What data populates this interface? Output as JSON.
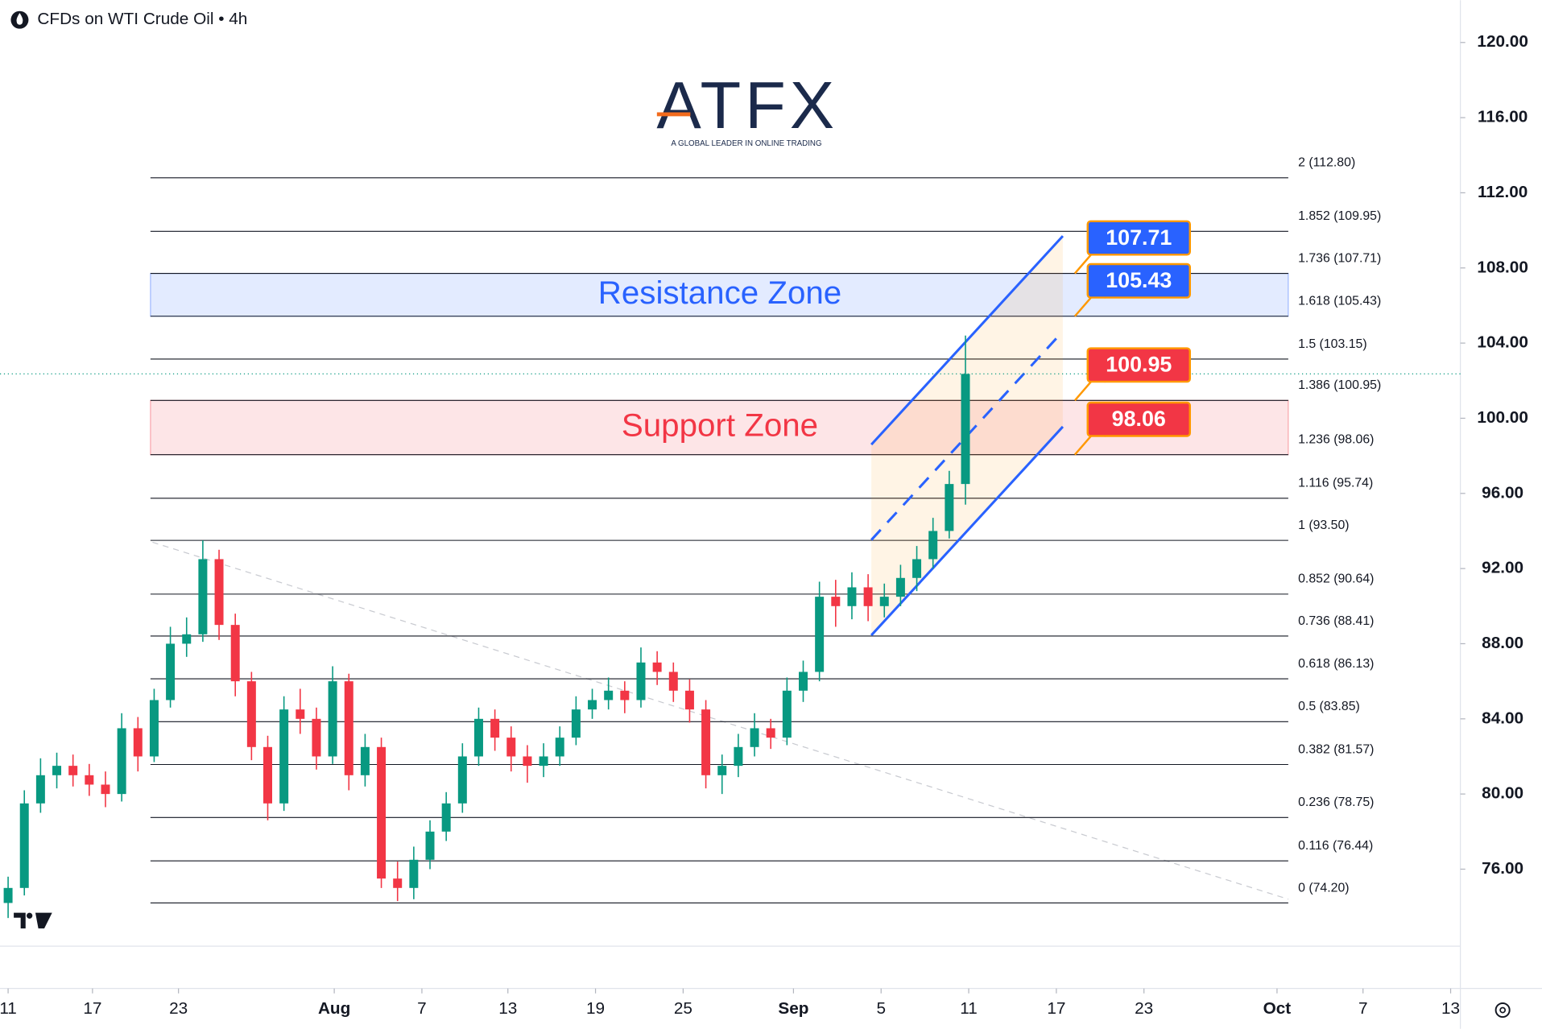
{
  "chart_data": {
    "type": "candlestick",
    "title": "CFDs on WTI Crude Oil • 4h",
    "logo": {
      "name": "ATFX",
      "tagline": "A GLOBAL LEADER IN ONLINE TRADING"
    },
    "up_color": "#089981",
    "down_color": "#f23645",
    "grid": false,
    "open": [
      74.2,
      75,
      79.5,
      81,
      81.5,
      81,
      80.5,
      80,
      83.5,
      82,
      85,
      88,
      88.5,
      92.5,
      89,
      86,
      82.5,
      79.5,
      84.5,
      84,
      82,
      86,
      81,
      82.5,
      75.5,
      75,
      76.5,
      78,
      79.5,
      82,
      84,
      83,
      82,
      81.5,
      82,
      83,
      84.5,
      85,
      85.5,
      85,
      87,
      86.5,
      85.5,
      84.5,
      81,
      81.5,
      82.5,
      83.5,
      83,
      85.5,
      86.5,
      90.5,
      90,
      91,
      90,
      90.5,
      91.5,
      92.5,
      94,
      96.5
    ],
    "high": [
      75.6,
      80.2,
      81.9,
      82.2,
      82.1,
      81.6,
      81.2,
      84.3,
      84.1,
      85.6,
      88.9,
      89.4,
      93.5,
      93,
      89.6,
      86.5,
      83.1,
      85.2,
      85.6,
      84.6,
      86.8,
      86.4,
      83.2,
      83,
      76.4,
      77.2,
      78.6,
      80.1,
      82.7,
      84.6,
      84.5,
      83.6,
      82.6,
      82.7,
      83.6,
      85.2,
      85.6,
      86.2,
      86,
      87.8,
      87.6,
      87,
      86.1,
      85,
      82.1,
      83.2,
      84.3,
      84,
      86.2,
      87.1,
      91.3,
      91.4,
      91.8,
      91.7,
      91.2,
      92.2,
      93.2,
      94.7,
      97.2,
      104.4
    ],
    "low": [
      73.4,
      74.6,
      79,
      80.3,
      80.4,
      79.9,
      79.3,
      79.6,
      81.2,
      81.7,
      84.6,
      87.3,
      88.1,
      88.2,
      85.2,
      81.8,
      78.6,
      79.1,
      83.2,
      81.3,
      81.6,
      80.2,
      80.4,
      75,
      74.3,
      74.4,
      76,
      77.5,
      79,
      81.5,
      82.3,
      81.2,
      80.6,
      80.9,
      81.5,
      82.6,
      84,
      84.5,
      84.3,
      84.6,
      85.8,
      84.9,
      83.8,
      80.3,
      80,
      80.9,
      82,
      82.4,
      82.6,
      84.9,
      86,
      88.9,
      89.3,
      89.2,
      89.4,
      90,
      90.8,
      92,
      93.6,
      95.4
    ],
    "close": [
      75,
      79.5,
      81,
      81.5,
      81,
      80.5,
      80,
      83.5,
      82,
      85,
      88,
      88.5,
      92.5,
      89,
      86,
      82.5,
      79.5,
      84.5,
      84,
      82,
      86,
      81,
      82.5,
      75.5,
      75,
      76.5,
      78,
      79.5,
      82,
      84,
      83,
      82,
      81.5,
      82,
      83,
      84.5,
      85,
      85.5,
      85,
      87,
      86.5,
      85.5,
      84.5,
      81,
      81.5,
      82.5,
      83.5,
      83,
      85.5,
      86.5,
      90.5,
      90,
      91,
      90,
      90.5,
      91.5,
      92.5,
      94,
      96.5,
      102.36
    ],
    "xlim": [
      -0.5,
      89.5
    ],
    "xticks": [
      {
        "value": 0,
        "label": "11"
      },
      {
        "value": 5.2,
        "label": "17"
      },
      {
        "value": 10.5,
        "label": "23"
      },
      {
        "value": 20.1,
        "label": "Aug"
      },
      {
        "value": 25.5,
        "label": "7"
      },
      {
        "value": 30.8,
        "label": "13"
      },
      {
        "value": 36.2,
        "label": "19"
      },
      {
        "value": 41.6,
        "label": "25"
      },
      {
        "value": 48.4,
        "label": "Sep"
      },
      {
        "value": 53.8,
        "label": "5"
      },
      {
        "value": 59.2,
        "label": "11"
      },
      {
        "value": 64.6,
        "label": "17"
      },
      {
        "value": 70,
        "label": "23"
      },
      {
        "value": 78.2,
        "label": "Oct"
      },
      {
        "value": 83.5,
        "label": "7"
      },
      {
        "value": 88.9,
        "label": "13"
      }
    ],
    "ylim": [
      71.9,
      122.25
    ],
    "yticks": [
      {
        "value": 76,
        "label": "76.00"
      },
      {
        "value": 80,
        "label": "80.00"
      },
      {
        "value": 84,
        "label": "84.00"
      },
      {
        "value": 88,
        "label": "88.00"
      },
      {
        "value": 92,
        "label": "92.00"
      },
      {
        "value": 96,
        "label": "96.00"
      },
      {
        "value": 100,
        "label": "100.00"
      },
      {
        "value": 104,
        "label": "104.00"
      },
      {
        "value": 108,
        "label": "108.00"
      },
      {
        "value": 112,
        "label": "112.00"
      },
      {
        "value": 116,
        "label": "116.00"
      },
      {
        "value": 120,
        "label": "120.00"
      }
    ],
    "fib_levels": [
      {
        "value": 112.8,
        "label": "2 (112.80)"
      },
      {
        "value": 109.95,
        "label": "1.852 (109.95)"
      },
      {
        "value": 107.71,
        "label": "1.736 (107.71)"
      },
      {
        "value": 105.43,
        "label": "1.618 (105.43)"
      },
      {
        "value": 103.15,
        "label": "1.5 (103.15)"
      },
      {
        "value": 100.95,
        "label": "1.386 (100.95)"
      },
      {
        "value": 98.06,
        "label": "1.236 (98.06)"
      },
      {
        "value": 95.74,
        "label": "1.116 (95.74)"
      },
      {
        "value": 93.5,
        "label": "1 (93.50)"
      },
      {
        "value": 90.64,
        "label": "0.852 (90.64)"
      },
      {
        "value": 88.41,
        "label": "0.736 (88.41)"
      },
      {
        "value": 86.13,
        "label": "0.618 (86.13)"
      },
      {
        "value": 83.85,
        "label": "0.5 (83.85)"
      },
      {
        "value": 81.57,
        "label": "0.382 (81.57)"
      },
      {
        "value": 78.75,
        "label": "0.236 (78.75)"
      },
      {
        "value": 76.44,
        "label": "0.116 (76.44)"
      },
      {
        "value": 74.2,
        "label": "0 (74.20)"
      }
    ],
    "zones": [
      {
        "label": "Resistance Zone",
        "from": 105.43,
        "to": 107.71,
        "color": "#2962ff"
      },
      {
        "label": "Support Zone",
        "from": 98.06,
        "to": 100.95,
        "color": "#f23645"
      }
    ],
    "callouts": [
      {
        "value": 107.71,
        "color": "#2962ff"
      },
      {
        "value": 105.43,
        "color": "#2962ff"
      },
      {
        "value": 100.95,
        "color": "#f23645"
      },
      {
        "value": 98.06,
        "color": "#f23645"
      }
    ],
    "channel": {
      "x": [
        53.2,
        65
      ],
      "upper": [
        98.6,
        109.7
      ],
      "lower": [
        88.45,
        99.55
      ],
      "color": "#2962ff"
    },
    "trendline": {
      "x": [
        8.9,
        78.9
      ],
      "y": [
        93.4,
        74.4
      ]
    }
  }
}
